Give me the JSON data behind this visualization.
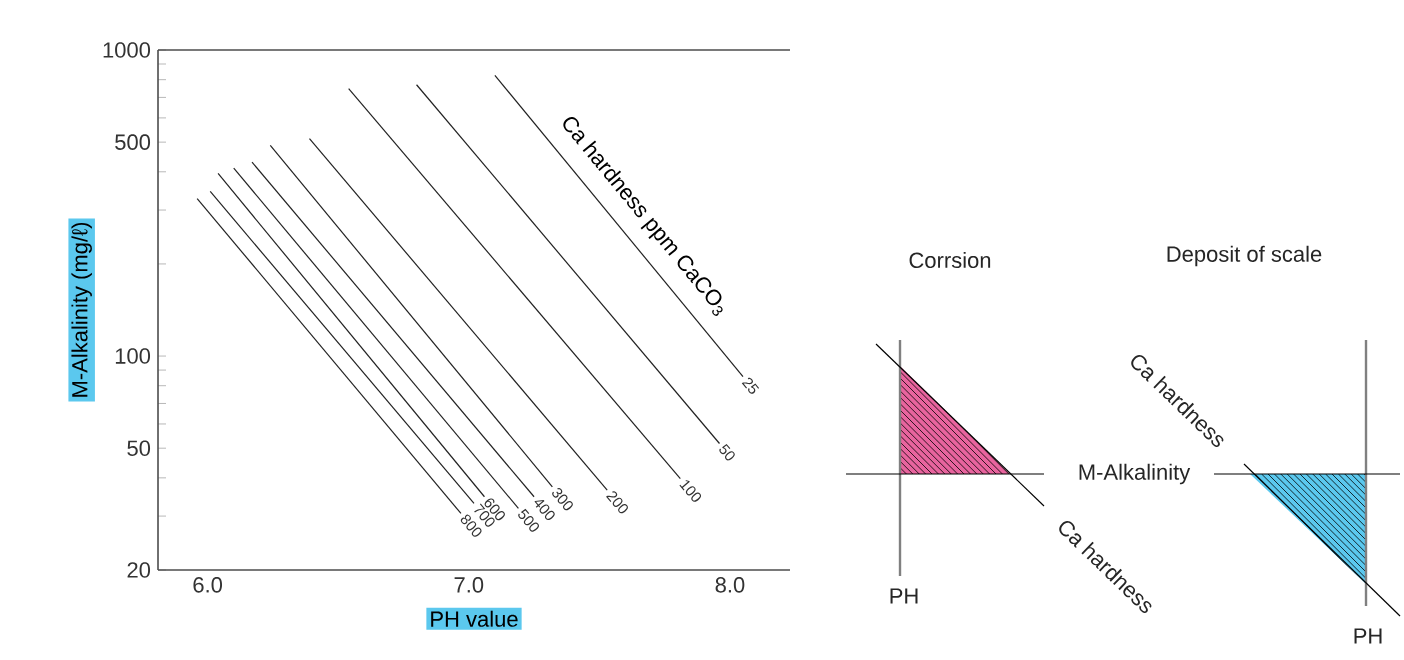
{
  "chart_data": [
    {
      "type": "line",
      "xlabel": "PH value",
      "ylabel": "M-Alkalinity (mg/ℓ)",
      "log": "y",
      "annotations": [
        "Ca hardness ppm CaCO$_{3}$"
      ],
      "xlim": [
        5.81,
        8.23
      ],
      "ylim": [
        20,
        1000
      ],
      "xticks": [
        {
          "value": 6,
          "label": "6.0"
        },
        {
          "value": 7,
          "label": "7.0"
        },
        {
          "value": 8,
          "label": "8.0"
        }
      ],
      "yticks": [
        20,
        {
          "value": 30,
          "label": null
        },
        {
          "value": 40,
          "label": null
        },
        50,
        {
          "value": 60,
          "label": null
        },
        {
          "value": 70,
          "label": null
        },
        {
          "value": 80,
          "label": null
        },
        {
          "value": 90,
          "label": null
        },
        100,
        {
          "value": 200,
          "label": null
        },
        {
          "value": 300,
          "label": null
        },
        {
          "value": 400,
          "label": null
        },
        500,
        {
          "value": 600,
          "label": null
        },
        {
          "value": 700,
          "label": null
        },
        {
          "value": 800,
          "label": null
        },
        {
          "value": 900,
          "label": null
        },
        1000
      ],
      "series": [
        {
          "name": "800",
          "color": "#222222",
          "x": [
            5.96,
            6.97
          ],
          "values": [
            327,
            30.6
          ]
        },
        {
          "name": "700",
          "color": "#222222",
          "x": [
            6.01,
            7.02
          ],
          "values": [
            345,
            33
          ]
        },
        {
          "name": "600",
          "color": "#222222",
          "x": [
            6.04,
            7.06
          ],
          "values": [
            395,
            34.7
          ]
        },
        {
          "name": "500",
          "color": "#222222",
          "x": [
            6.1,
            7.19
          ],
          "values": [
            411,
            31.8
          ]
        },
        {
          "name": "400",
          "color": "#222222",
          "x": [
            6.17,
            7.25
          ],
          "values": [
            430,
            34.7
          ]
        },
        {
          "name": "300",
          "color": "#222222",
          "x": [
            6.24,
            7.32
          ],
          "values": [
            488,
            37.4
          ]
        },
        {
          "name": "200",
          "color": "#222222",
          "x": [
            6.39,
            7.53
          ],
          "values": [
            513,
            36.5
          ]
        },
        {
          "name": "100",
          "color": "#222222",
          "x": [
            6.54,
            7.81
          ],
          "values": [
            748,
            39.8
          ]
        },
        {
          "name": "50",
          "color": "#222222",
          "x": [
            6.8,
            7.96
          ],
          "values": [
            770,
            51.8
          ]
        },
        {
          "name": "25",
          "color": "#222222",
          "x": [
            7.1,
            8.05
          ],
          "values": [
            826,
            85.7
          ]
        }
      ]
    },
    {
      "type": "other",
      "annotations": [
        "Corrsion",
        "Deposit of scale",
        "M-Alkalinity",
        "Ca hardness",
        "PH",
        "Ca hardness",
        "PH"
      ]
    }
  ]
}
